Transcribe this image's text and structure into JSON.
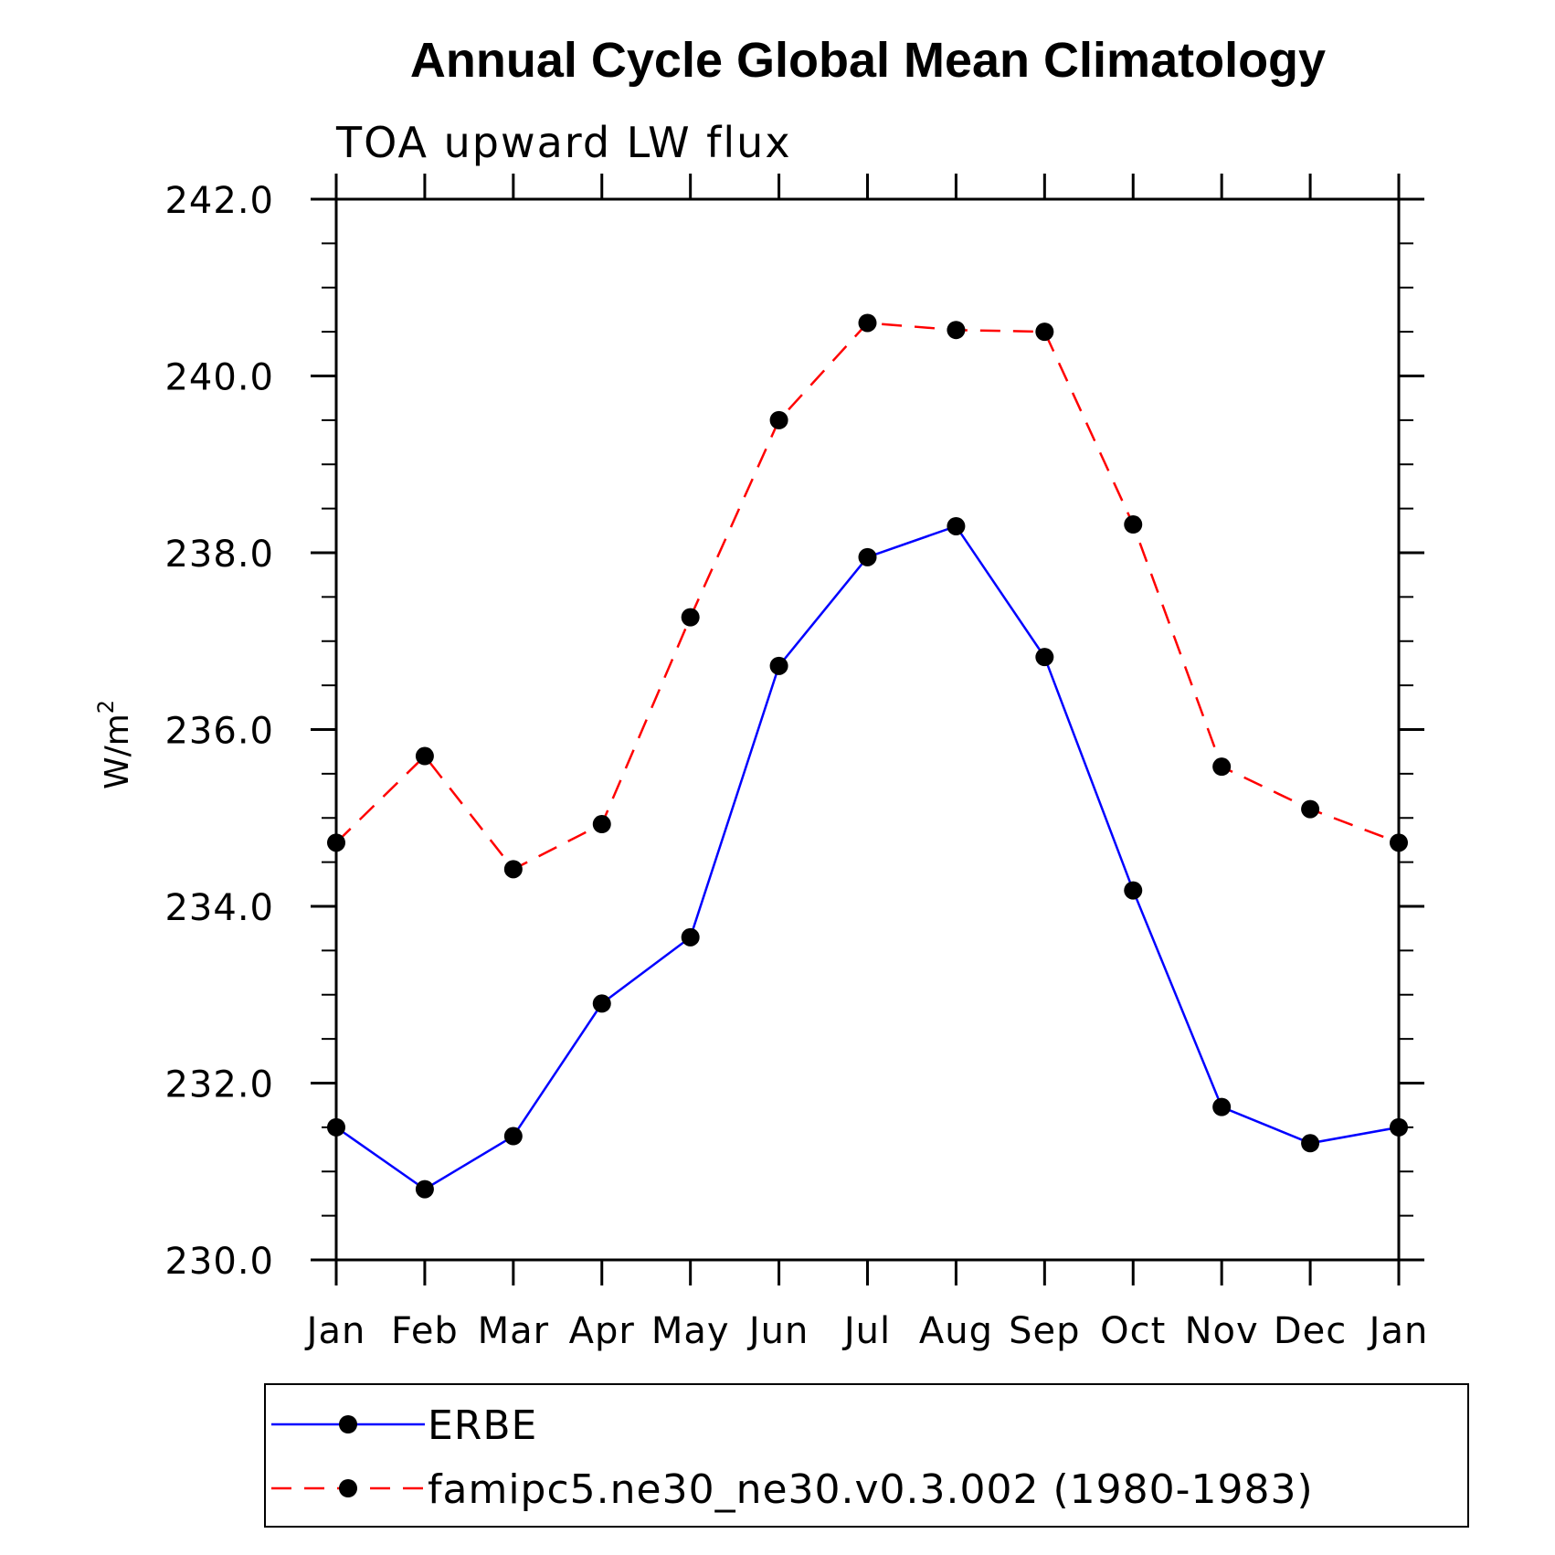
{
  "chart_data": {
    "type": "line",
    "title": "Annual Cycle Global Mean Climatology",
    "subtitle": "TOA upward LW flux",
    "ylabel_base": "W/m",
    "ylabel_exp": "2",
    "categories": [
      "Jan",
      "Feb",
      "Mar",
      "Apr",
      "May",
      "Jun",
      "Jul",
      "Aug",
      "Sep",
      "Oct",
      "Nov",
      "Dec",
      "Jan"
    ],
    "ylim": [
      230.0,
      242.0
    ],
    "yticks": [
      "230.0",
      "232.0",
      "234.0",
      "236.0",
      "238.0",
      "240.0",
      "242.0"
    ],
    "yminor_step": 0.5,
    "series": [
      {
        "name": "ERBE",
        "color": "#0000ff",
        "dash": "solid",
        "values": [
          231.5,
          230.8,
          231.4,
          232.9,
          233.65,
          236.72,
          237.95,
          238.3,
          236.82,
          234.18,
          231.73,
          231.32,
          231.5
        ]
      },
      {
        "name": "famipc5.ne30_ne30.v0.3.002 (1980-1983)",
        "color": "#ff0000",
        "dash": "dashed",
        "values": [
          234.72,
          235.7,
          234.42,
          234.93,
          237.27,
          239.5,
          240.6,
          240.52,
          240.5,
          238.32,
          235.58,
          235.1,
          234.72
        ]
      }
    ],
    "marker_color": "#000000"
  }
}
